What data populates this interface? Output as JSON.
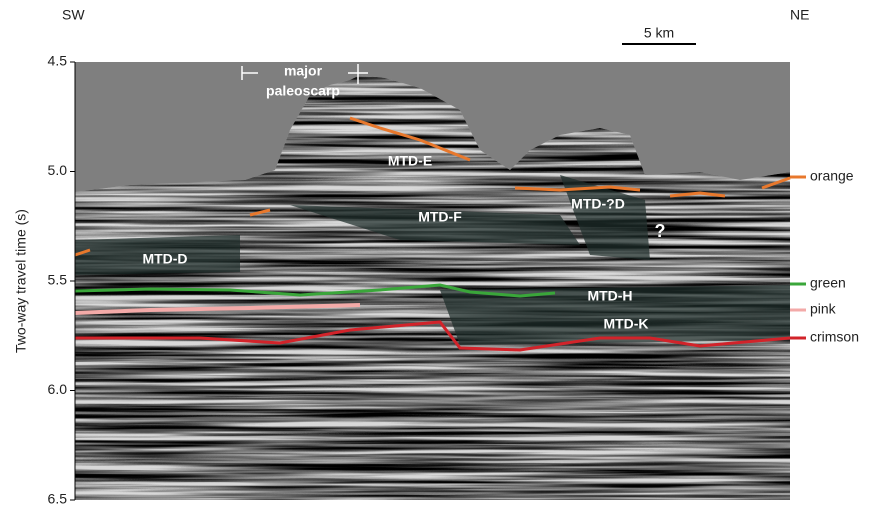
{
  "chart_data": {
    "type": "seismic",
    "ylabel": "Two-way travel time (s)",
    "ylim": [
      4.5,
      6.5
    ],
    "invert_y": true,
    "yticks": [
      4.5,
      {
        "value": 5.0,
        "label": "5.0"
      },
      5.5,
      {
        "value": 6.0,
        "label": "6.0"
      },
      6.5
    ],
    "left_label": "SW",
    "right_label": "NE",
    "scale_bar": "5 km",
    "horizons": [
      {
        "name": "orange",
        "color": "#e8782c"
      },
      {
        "name": "green",
        "color": "#3aa63a"
      },
      {
        "name": "pink",
        "color": "#f3aaa8"
      },
      {
        "name": "crimson",
        "color": "#d2232a"
      }
    ],
    "units": [
      "MTD-E",
      "MTD-F",
      "MTD-D",
      "MTD-?D",
      "MTD-H",
      "MTD-K"
    ],
    "annotations": [
      "major",
      "paleoscarp",
      "?"
    ]
  }
}
